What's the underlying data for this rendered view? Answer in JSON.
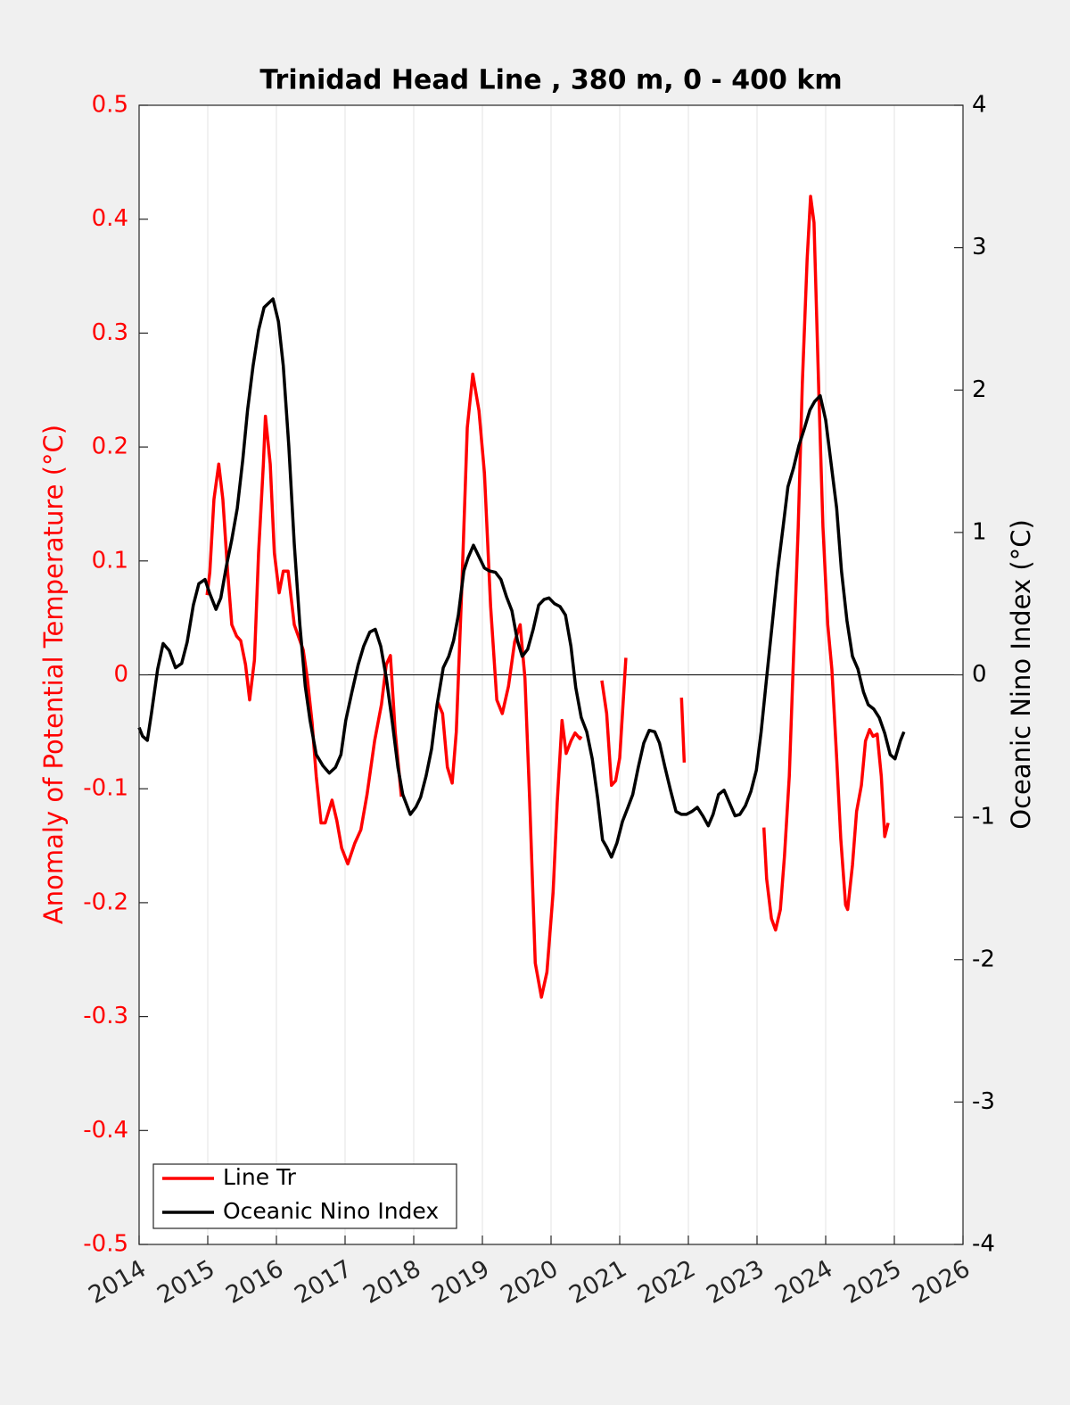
{
  "chart_data": {
    "type": "line",
    "title": "Trinidad Head Line , 380 m, 0 - 400 km",
    "y_label": "Anomaly of Potential Temperature (°C)",
    "y2_label": "Oceanic Nino Index (°C)",
    "xlim": [
      2014,
      2026
    ],
    "xticks": [
      2014,
      2015,
      2016,
      2017,
      2018,
      2019,
      2020,
      2021,
      2022,
      2023,
      2024,
      2025,
      2026
    ],
    "ylim": [
      -0.5,
      0.5
    ],
    "yticks": [
      -0.5,
      -0.4,
      -0.3,
      -0.2,
      -0.1,
      0,
      0.1,
      0.2,
      0.3,
      0.4,
      0.5
    ],
    "y2lim": [
      -4,
      4
    ],
    "y2ticks": [
      -4,
      -3,
      -2,
      -1,
      0,
      1,
      2,
      3,
      4
    ],
    "xgrid": true,
    "legend": "lower left",
    "series": [
      {
        "name": "Line Tr",
        "color": "#ff0000",
        "x": [
          2014.99,
          2015.03,
          2015.09,
          2015.16,
          2015.22,
          2015.29,
          2015.35,
          2015.42,
          2015.48,
          2015.55,
          2015.61,
          2015.68,
          2015.74,
          2015.81,
          2015.84,
          2015.91,
          2015.97,
          2016.04,
          2016.1,
          2016.17,
          2016.26,
          2016.39,
          2016.45,
          2016.52,
          2016.58,
          2016.65,
          2016.71,
          2016.81,
          2016.88,
          2016.95,
          2017.04,
          2017.14,
          2017.23,
          2017.32,
          2017.43,
          2017.53,
          2017.6,
          2017.66,
          2017.73,
          2017.82,
          null,
          2018.35,
          2018.42,
          2018.49,
          2018.56,
          2018.62,
          2018.7,
          2018.78,
          2018.86,
          2018.95,
          2019.03,
          2019.12,
          2019.21,
          2019.29,
          2019.38,
          2019.47,
          2019.55,
          2019.62,
          2019.69,
          2019.77,
          2019.86,
          2019.94,
          2020.03,
          2020.09,
          2020.16,
          2020.22,
          2020.29,
          2020.35,
          2020.42,
          2020.44,
          null,
          2020.74,
          2020.81,
          2020.88,
          2020.94,
          2021.0,
          2021.04,
          2021.09,
          null,
          2021.9,
          2021.94,
          null,
          2023.1,
          2023.14,
          2023.21,
          2023.27,
          2023.34,
          2023.4,
          2023.47,
          2023.53,
          2023.6,
          2023.66,
          2023.73,
          2023.78,
          2023.83,
          2023.9,
          2023.96,
          2024.03,
          2024.09,
          2024.16,
          2024.22,
          2024.29,
          2024.32,
          2024.39,
          2024.45,
          2024.52,
          2024.58,
          2024.64,
          2024.69,
          2024.75,
          2024.81,
          2024.86,
          2024.91
        ],
        "values": [
          0.07,
          0.09,
          0.154,
          0.185,
          0.154,
          0.09,
          0.044,
          0.034,
          0.03,
          0.009,
          -0.022,
          0.013,
          0.107,
          0.185,
          0.227,
          0.185,
          0.107,
          0.072,
          0.091,
          0.091,
          0.044,
          0.022,
          -0.003,
          -0.042,
          -0.089,
          -0.13,
          -0.13,
          -0.11,
          -0.128,
          -0.152,
          -0.166,
          -0.148,
          -0.136,
          -0.105,
          -0.058,
          -0.026,
          0.009,
          0.017,
          -0.05,
          -0.107,
          null,
          -0.024,
          -0.034,
          -0.081,
          -0.095,
          -0.05,
          0.076,
          0.217,
          0.264,
          0.232,
          0.177,
          0.06,
          -0.022,
          -0.034,
          -0.01,
          0.029,
          0.044,
          -0.003,
          -0.112,
          -0.253,
          -0.283,
          -0.261,
          -0.191,
          -0.112,
          -0.04,
          -0.069,
          -0.058,
          -0.051,
          -0.056,
          -0.054,
          null,
          -0.005,
          -0.034,
          -0.097,
          -0.093,
          -0.073,
          -0.034,
          0.015,
          null,
          -0.02,
          -0.077,
          null,
          -0.134,
          -0.179,
          -0.214,
          -0.224,
          -0.206,
          -0.159,
          -0.089,
          0.013,
          0.13,
          0.256,
          0.365,
          0.42,
          0.397,
          0.248,
          0.13,
          0.044,
          0.005,
          -0.073,
          -0.144,
          -0.202,
          -0.206,
          -0.167,
          -0.12,
          -0.097,
          -0.058,
          -0.048,
          -0.054,
          -0.052,
          -0.089,
          -0.142,
          -0.13
        ]
      },
      {
        "name": "Oceanic Nino Index",
        "color": "#000000",
        "axis": "y2",
        "x": [
          2014.0,
          2014.05,
          2014.12,
          2014.18,
          2014.27,
          2014.35,
          2014.44,
          2014.53,
          2014.62,
          2014.7,
          2014.79,
          2014.87,
          2014.96,
          2015.03,
          2015.12,
          2015.19,
          2015.27,
          2015.35,
          2015.43,
          2015.51,
          2015.58,
          2015.66,
          2015.74,
          2015.82,
          2015.95,
          2016.03,
          2016.1,
          2016.18,
          2016.26,
          2016.34,
          2016.42,
          2016.49,
          2016.58,
          2016.68,
          2016.77,
          2016.86,
          2016.94,
          2017.01,
          2017.1,
          2017.19,
          2017.27,
          2017.36,
          2017.44,
          2017.52,
          2017.6,
          2017.69,
          2017.77,
          2017.84,
          2017.95,
          2018.03,
          2018.1,
          2018.18,
          2018.26,
          2018.34,
          2018.43,
          2018.51,
          2018.58,
          2018.65,
          2018.73,
          2018.79,
          2018.87,
          2018.95,
          2019.03,
          2019.1,
          2019.19,
          2019.27,
          2019.35,
          2019.43,
          2019.51,
          2019.58,
          2019.66,
          2019.74,
          2019.82,
          2019.9,
          2019.97,
          2020.05,
          2020.13,
          2020.21,
          2020.29,
          2020.36,
          2020.44,
          2020.52,
          2020.6,
          2020.68,
          2020.75,
          2020.81,
          2020.88,
          2020.96,
          2021.04,
          2021.12,
          2021.19,
          2021.27,
          2021.35,
          2021.43,
          2021.51,
          2021.58,
          2021.66,
          2021.74,
          2021.82,
          2021.9,
          2021.97,
          2022.05,
          2022.13,
          2022.21,
          2022.29,
          2022.36,
          2022.44,
          2022.52,
          2022.6,
          2022.68,
          2022.75,
          2022.83,
          2022.91,
          2022.99,
          2023.06,
          2023.14,
          2023.22,
          2023.3,
          2023.38,
          2023.45,
          2023.53,
          2023.61,
          2023.69,
          2023.77,
          2023.84,
          2023.92,
          2024.0,
          2024.08,
          2024.16,
          2024.23,
          2024.31,
          2024.39,
          2024.47,
          2024.55,
          2024.62,
          2024.7,
          2024.78,
          2024.86,
          2024.94,
          2025.01,
          2025.09,
          2025.14
        ],
        "values": [
          -0.37,
          -0.43,
          -0.46,
          -0.27,
          0.04,
          0.22,
          0.17,
          0.05,
          0.08,
          0.23,
          0.49,
          0.64,
          0.67,
          0.57,
          0.46,
          0.54,
          0.76,
          0.95,
          1.17,
          1.51,
          1.86,
          2.17,
          2.42,
          2.58,
          2.64,
          2.48,
          2.17,
          1.61,
          0.92,
          0.36,
          -0.08,
          -0.32,
          -0.56,
          -0.64,
          -0.69,
          -0.65,
          -0.56,
          -0.32,
          -0.12,
          0.07,
          0.2,
          0.3,
          0.32,
          0.2,
          -0.02,
          -0.34,
          -0.65,
          -0.84,
          -0.98,
          -0.93,
          -0.86,
          -0.71,
          -0.52,
          -0.21,
          0.05,
          0.13,
          0.24,
          0.42,
          0.73,
          0.82,
          0.91,
          0.83,
          0.75,
          0.73,
          0.72,
          0.67,
          0.55,
          0.45,
          0.24,
          0.13,
          0.18,
          0.32,
          0.49,
          0.53,
          0.54,
          0.5,
          0.48,
          0.42,
          0.2,
          -0.09,
          -0.3,
          -0.4,
          -0.59,
          -0.87,
          -1.16,
          -1.21,
          -1.28,
          -1.18,
          -1.03,
          -0.93,
          -0.84,
          -0.65,
          -0.48,
          -0.39,
          -0.4,
          -0.48,
          -0.65,
          -0.81,
          -0.96,
          -0.98,
          -0.98,
          -0.96,
          -0.93,
          -0.99,
          -1.06,
          -0.98,
          -0.84,
          -0.81,
          -0.9,
          -0.99,
          -0.98,
          -0.92,
          -0.82,
          -0.67,
          -0.4,
          -0.02,
          0.35,
          0.73,
          1.04,
          1.32,
          1.45,
          1.61,
          1.73,
          1.86,
          1.92,
          1.96,
          1.79,
          1.48,
          1.17,
          0.73,
          0.38,
          0.13,
          0.04,
          -0.12,
          -0.21,
          -0.24,
          -0.3,
          -0.41,
          -0.56,
          -0.59,
          -0.46,
          -0.4
        ]
      }
    ]
  }
}
